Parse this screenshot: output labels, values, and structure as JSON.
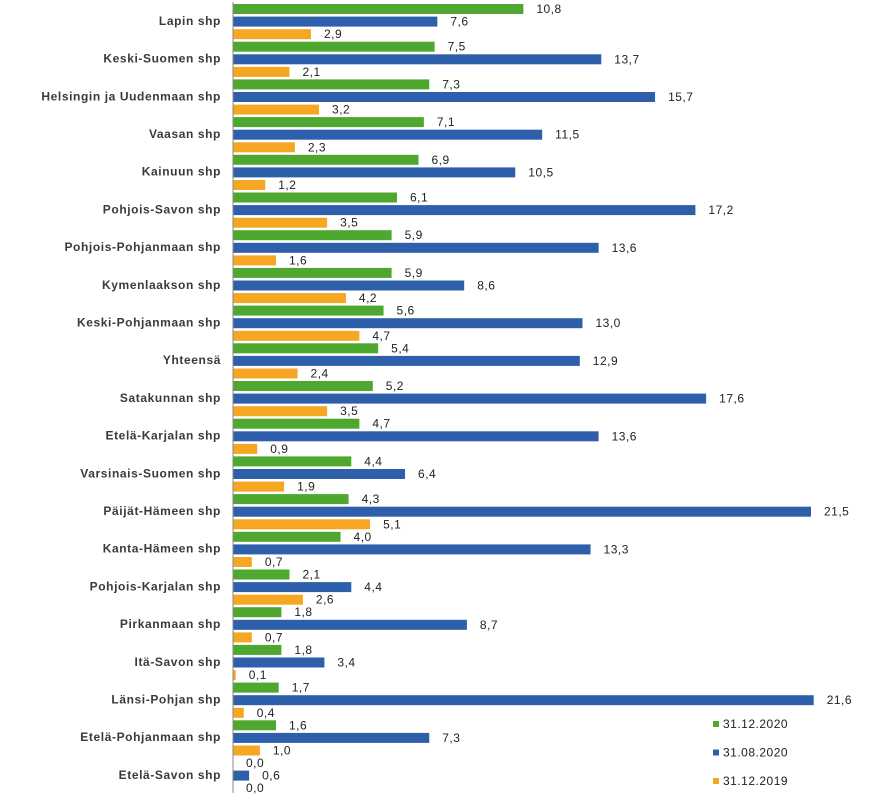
{
  "chart_data": {
    "type": "bar",
    "orientation": "horizontal",
    "title": "",
    "xlabel": "",
    "ylabel": "",
    "xlim": [
      0,
      21.6
    ],
    "grid": false,
    "legend_position": "bottom-right",
    "categories": [
      "Lapin shp",
      "Keski-Suomen shp",
      "Helsingin ja Uudenmaan shp",
      "Vaasan shp",
      "Kainuun shp",
      "Pohjois-Savon shp",
      "Pohjois-Pohjanmaan shp",
      "Kymenlaakson shp",
      "Keski-Pohjanmaan shp",
      "Yhteensä",
      "Satakunnan shp",
      "Etelä-Karjalan shp",
      "Varsinais-Suomen shp",
      "Päijät-Hämeen shp",
      "Kanta-Hämeen shp",
      "Pohjois-Karjalan shp",
      "Pirkanmaan shp",
      "Itä-Savon shp",
      "Länsi-Pohjan shp",
      "Etelä-Pohjanmaan shp",
      "Etelä-Savon shp"
    ],
    "series": [
      {
        "name": "31.12.2020",
        "color": "#4ea72e",
        "values": [
          10.8,
          7.5,
          7.3,
          7.1,
          6.9,
          6.1,
          5.9,
          5.9,
          5.6,
          5.4,
          5.2,
          4.7,
          4.4,
          4.3,
          4.0,
          2.1,
          1.8,
          1.8,
          1.7,
          1.6,
          0.0
        ],
        "labels": [
          "10,8",
          "7,5",
          "7,3",
          "7,1",
          "6,9",
          "6,1",
          "5,9",
          "5,9",
          "5,6",
          "5,4",
          "5,2",
          "4,7",
          "4,4",
          "4,3",
          "4,0",
          "2,1",
          "1,8",
          "1,8",
          "1,7",
          "1,6",
          "0,0"
        ]
      },
      {
        "name": "31.08.2020",
        "color": "#2e5faa",
        "values": [
          7.6,
          13.7,
          15.7,
          11.5,
          10.5,
          17.2,
          13.6,
          8.6,
          13.0,
          12.9,
          17.6,
          13.6,
          6.4,
          21.5,
          13.3,
          4.4,
          8.7,
          3.4,
          21.6,
          7.3,
          0.6
        ],
        "labels": [
          "7,6",
          "13,7",
          "15,7",
          "11,5",
          "10,5",
          "17,2",
          "13,6",
          "8,6",
          "13,0",
          "12,9",
          "17,6",
          "13,6",
          "6,4",
          "21,5",
          "13,3",
          "4,4",
          "8,7",
          "3,4",
          "21,6",
          "7,3",
          "0,6"
        ]
      },
      {
        "name": "31.12.2019",
        "color": "#f5a623",
        "values": [
          2.9,
          2.1,
          3.2,
          2.3,
          1.2,
          3.5,
          1.6,
          4.2,
          4.7,
          2.4,
          3.5,
          0.9,
          1.9,
          5.1,
          0.7,
          2.6,
          0.7,
          0.1,
          0.4,
          1.0,
          0.0
        ],
        "labels": [
          "2,9",
          "2,1",
          "3,2",
          "2,3",
          "1,2",
          "3,5",
          "1,6",
          "4,2",
          "4,7",
          "2,4",
          "3,5",
          "0,9",
          "1,9",
          "5,1",
          "0,7",
          "2,6",
          "0,7",
          "0,1",
          "0,4",
          "1,0",
          "0,0"
        ]
      }
    ]
  }
}
